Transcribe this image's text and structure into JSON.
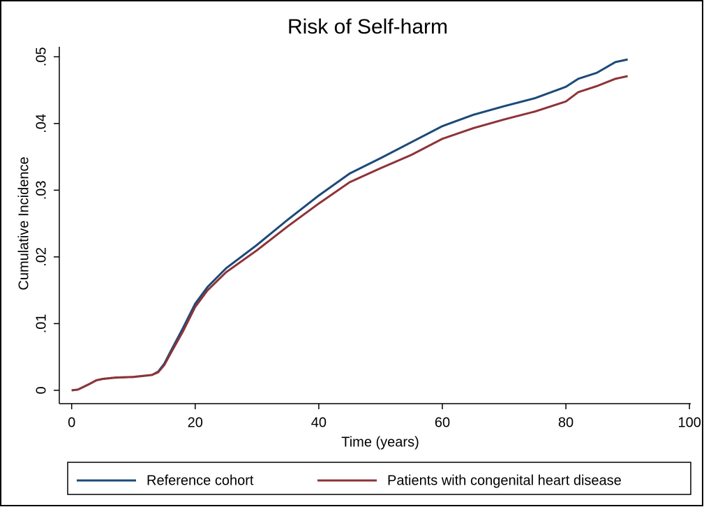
{
  "chart_data": {
    "type": "line",
    "title": "Risk of Self-harm",
    "x_label": "Time (years)",
    "y_label": "Cumulative Incidence",
    "xlim": [
      -2,
      101
    ],
    "ylim": [
      -0.002,
      0.0515
    ],
    "xticks": [
      0,
      20,
      40,
      60,
      80,
      100
    ],
    "yticks": [
      0,
      {
        "value": 0.01,
        "label": ".01"
      },
      {
        "value": 0.02,
        "label": ".02"
      },
      {
        "value": 0.03,
        "label": ".03"
      },
      {
        "value": 0.04,
        "label": ".04"
      },
      {
        "value": 0.05,
        "label": ".05"
      }
    ],
    "legend": "bottom",
    "x": [
      0,
      1,
      3,
      4,
      5,
      7,
      10,
      12,
      13,
      14,
      15,
      16,
      18,
      20,
      22,
      25,
      30,
      35,
      40,
      45,
      50,
      55,
      60,
      65,
      70,
      75,
      80,
      82,
      85,
      88,
      90
    ],
    "series": [
      {
        "name": "Reference cohort",
        "color": "#1b4a78",
        "values": [
          0,
          0.0001,
          0.001,
          0.0015,
          0.0017,
          0.0019,
          0.002,
          0.0022,
          0.0023,
          0.0028,
          0.004,
          0.0058,
          0.0093,
          0.013,
          0.0155,
          0.0183,
          0.0218,
          0.0256,
          0.0292,
          0.0325,
          0.0348,
          0.0372,
          0.0396,
          0.0413,
          0.0426,
          0.0438,
          0.0455,
          0.0467,
          0.0476,
          0.0492,
          0.0496
        ]
      },
      {
        "name": "Patients with congenital heart disease",
        "color": "#8e3339",
        "values": [
          0,
          0.0001,
          0.001,
          0.0015,
          0.0017,
          0.0019,
          0.002,
          0.0022,
          0.0023,
          0.0027,
          0.0038,
          0.0055,
          0.0088,
          0.0125,
          0.015,
          0.0177,
          0.021,
          0.0246,
          0.028,
          0.0312,
          0.0333,
          0.0353,
          0.0377,
          0.0393,
          0.0406,
          0.0418,
          0.0433,
          0.0447,
          0.0456,
          0.0467,
          0.0471
        ]
      }
    ]
  }
}
